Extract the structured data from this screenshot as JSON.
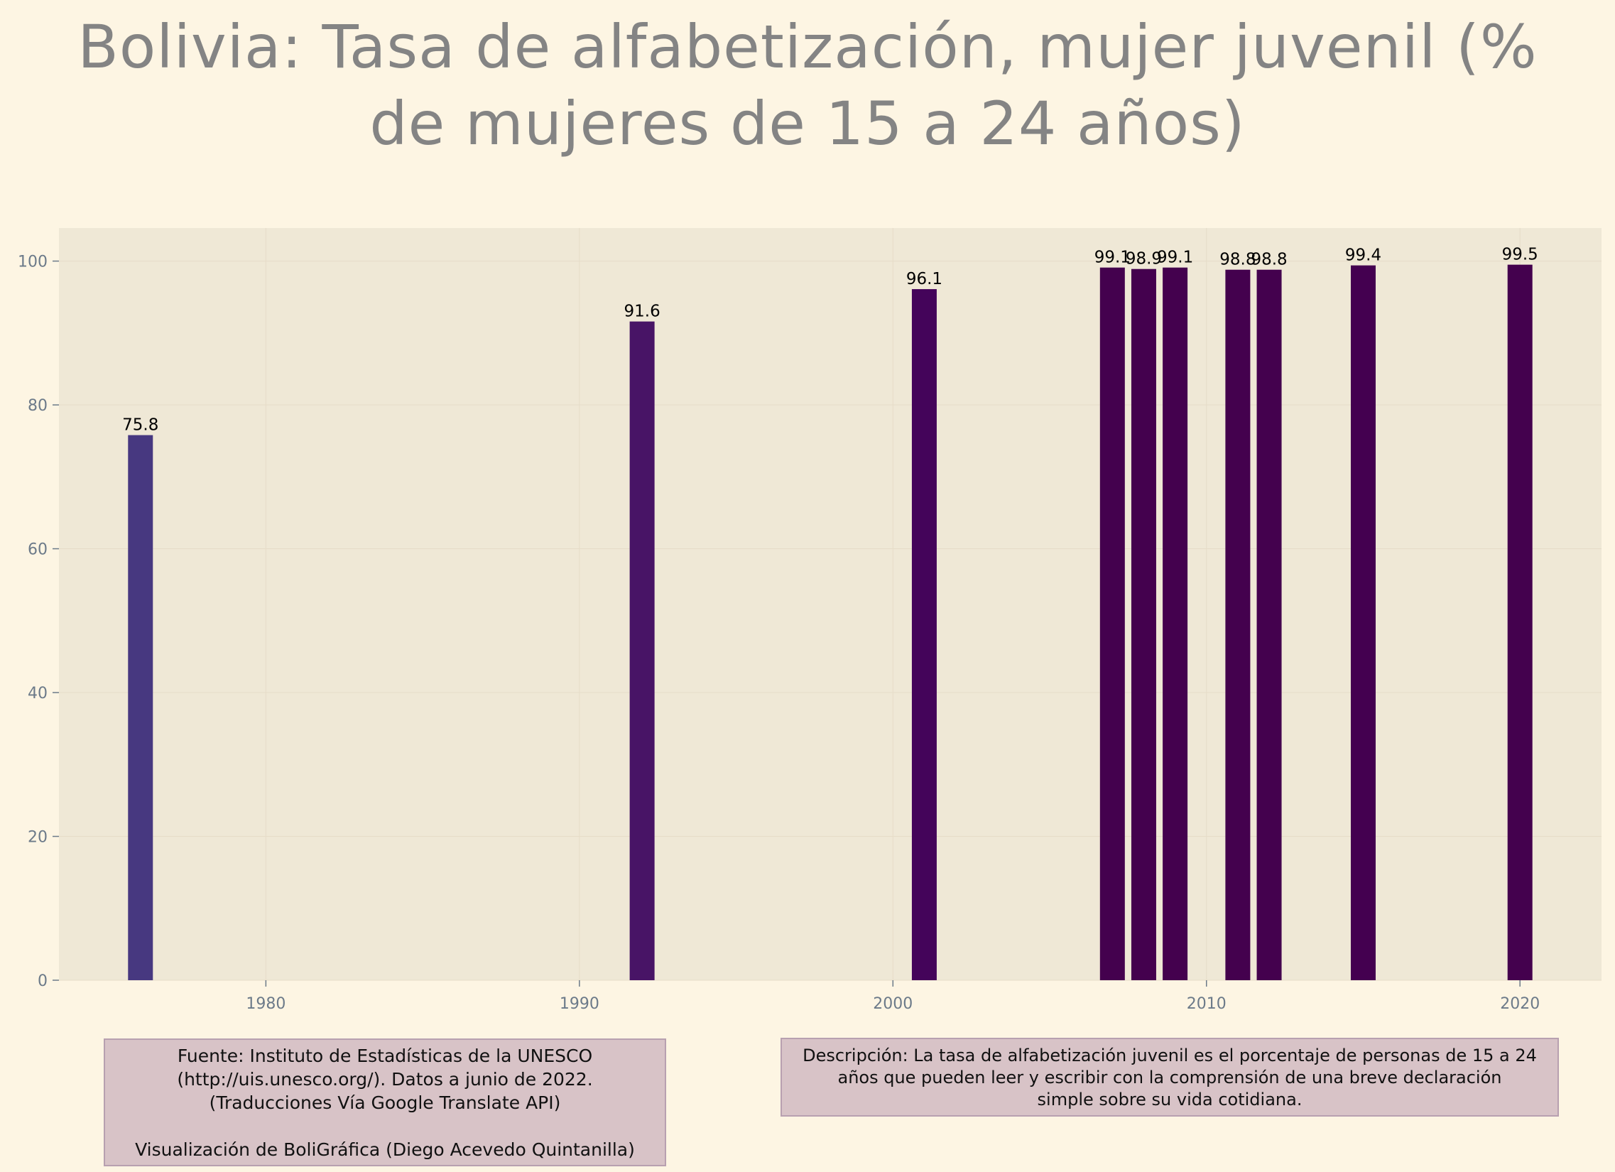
{
  "title_lines": [
    "Bolivia:  Tasa de alfabetización, mujer juvenil (%",
    "de mujeres de 15 a 24 años)"
  ],
  "chart_data": {
    "type": "bar",
    "x": [
      1976,
      1992,
      2001,
      2007,
      2008,
      2009,
      2011,
      2012,
      2015,
      2020
    ],
    "values": [
      75.8,
      91.6,
      96.1,
      99.1,
      98.9,
      99.1,
      98.8,
      98.8,
      99.4,
      99.5
    ],
    "data_labels": [
      "75.8",
      "91.6",
      "96.1",
      "99.1",
      "98.9",
      "99.1",
      "98.8",
      "98.8",
      "99.4",
      "99.5"
    ],
    "bar_colors": [
      "#473880",
      "#481466",
      "#44045a",
      "#44014e",
      "#44014e",
      "#44014e",
      "#44014e",
      "#44014e",
      "#440050",
      "#44014e"
    ],
    "xlim": [
      1973.4,
      2022.6
    ],
    "ylim": [
      0,
      104.6
    ],
    "x_ticks": [
      1980,
      1990,
      2000,
      2010,
      2020
    ],
    "y_ticks": [
      0,
      20,
      40,
      60,
      80,
      100
    ],
    "xlabel": "",
    "ylabel": "",
    "grid": true,
    "plot_background": "#efe8d6",
    "tick_color": "#6c7a89"
  },
  "notes": {
    "source_lines": [
      "Fuente: Instituto de Estadísticas de la UNESCO",
      "(http://uis.unesco.org/). Datos a junio de 2022.",
      "(Traducciones Vía Google Translate API)",
      "Visualización de BoliGráfica (Diego Acevedo Quintanilla)"
    ],
    "description_lines": [
      "Descripción: La tasa de alfabetización juvenil es el porcentaje de personas de 15 a 24",
      "años que pueden leer y escribir con la comprensión de una breve declaración",
      "simple sobre su vida cotidiana."
    ]
  }
}
